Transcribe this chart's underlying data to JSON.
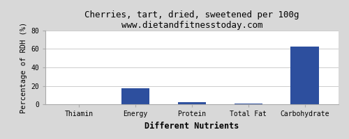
{
  "title": "Cherries, tart, dried, sweetened per 100g",
  "subtitle": "www.dietandfitnesstoday.com",
  "categories": [
    "Thiamin",
    "Energy",
    "Protein",
    "Total Fat",
    "Carbohydrate"
  ],
  "values": [
    0.0,
    17.5,
    2.5,
    1.0,
    62.5
  ],
  "bar_color": "#2d4f9e",
  "xlabel": "Different Nutrients",
  "ylabel": "Percentage of RDH (%)",
  "ylim": [
    0,
    80
  ],
  "yticks": [
    0,
    20,
    40,
    60,
    80
  ],
  "background_color": "#d8d8d8",
  "plot_background": "#ffffff",
  "title_fontsize": 9,
  "subtitle_fontsize": 8,
  "axis_label_fontsize": 7.5,
  "tick_fontsize": 7,
  "xlabel_fontsize": 8.5
}
